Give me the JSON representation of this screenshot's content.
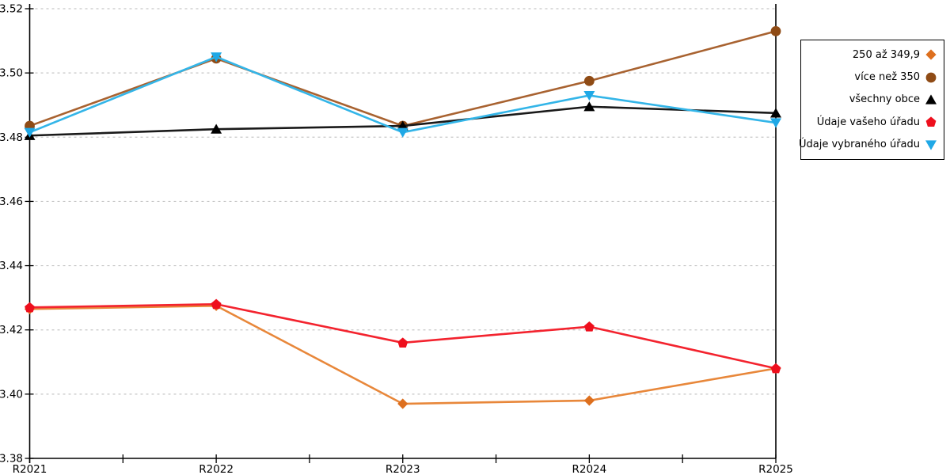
{
  "chart_data": {
    "type": "line",
    "title": "",
    "xlabel": "",
    "ylabel": "",
    "categories": [
      "R2021",
      "R2022",
      "R2023",
      "R2024",
      "R2025"
    ],
    "y_axis": {
      "min": 3.38,
      "max": 3.52,
      "step": 0.02,
      "tick_labels": [
        "3.38",
        "3.40",
        "3.42",
        "3.44",
        "3.46",
        "3.48",
        "3.50",
        "3.52"
      ]
    },
    "grid": "horizontal-dashed",
    "legend_position": "right",
    "series": [
      {
        "name": "250 až 349,9",
        "marker": "diamond",
        "line_color": "#E8873A",
        "marker_color": "#DD6F1E",
        "values": [
          3.4265,
          3.4275,
          3.397,
          3.398,
          3.408
        ]
      },
      {
        "name": "více než 350",
        "marker": "circle",
        "line_color": "#A86230",
        "marker_color": "#8F4B15",
        "values": [
          3.4835,
          3.5045,
          3.4835,
          3.4975,
          3.513
        ]
      },
      {
        "name": "všechny obce",
        "marker": "triangle-up",
        "line_color": "#1A1A1A",
        "marker_color": "#000000",
        "values": [
          3.4805,
          3.4825,
          3.4835,
          3.4895,
          3.4875
        ]
      },
      {
        "name": "Údaje vašeho úřadu",
        "marker": "pentagon",
        "line_color": "#F3232E",
        "marker_color": "#EE0F1D",
        "values": [
          3.427,
          3.428,
          3.416,
          3.421,
          3.408
        ]
      },
      {
        "name": "Údaje vybraného úřadu",
        "marker": "triangle-down",
        "line_color": "#33B5E8",
        "marker_color": "#1FA8E6",
        "values": [
          3.4815,
          3.505,
          3.4815,
          3.493,
          3.4845
        ]
      }
    ]
  }
}
